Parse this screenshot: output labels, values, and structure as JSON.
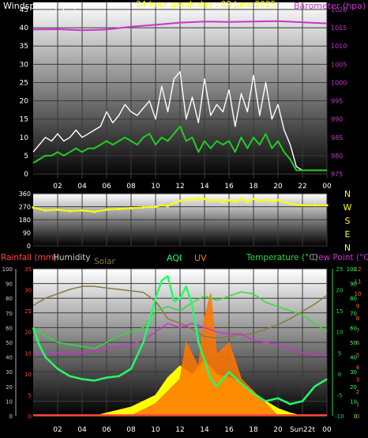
{
  "header": {
    "wind_title": "Windspeed (kph)",
    "graph_title": "24 hour graph day : 02 June 2025",
    "baro_title": "Barometer (hpa)"
  },
  "legend": {
    "rainfall": "Rainfall (mm)",
    "humidity": "Humidity",
    "solar": "Solar",
    "aqi": "AQI",
    "uv": "UV",
    "temperature": "Temperature (°C)",
    "dewpoint": "Dew Point (°C)"
  },
  "colors": {
    "background": "#000000",
    "grid": "#3a3a3a",
    "wind_gust": "#ffffff",
    "wind_avg": "#22cc22",
    "barometer": "#cc33cc",
    "direction": "#ffff00",
    "rainfall": "#ff4444",
    "humidity": "#c8c8c8",
    "solar": "#8a7a3a",
    "aqi": "#22ff66",
    "uv": "#ff7700",
    "temperature": "#33dd33",
    "dewpoint": "#cc33cc",
    "solar_fill": "#ffff00"
  },
  "chart_data": [
    {
      "type": "line",
      "name": "wind-barometer",
      "x_ticks": [
        "02",
        "04",
        "06",
        "08",
        "10",
        "12",
        "14",
        "16",
        "18",
        "20",
        "22",
        "00"
      ],
      "xlim": [
        0,
        24
      ],
      "y_left": {
        "label": "Windspeed (kph)",
        "range": [
          0,
          45
        ],
        "ticks": [
          "0",
          "5",
          "10",
          "15",
          "20",
          "25",
          "30",
          "35",
          "40",
          "45"
        ]
      },
      "y_right": {
        "label": "Barometer (hpa)",
        "range": [
          975,
          1020
        ],
        "ticks": [
          "975",
          "980",
          "985",
          "990",
          "995",
          "1000",
          "1005",
          "1010",
          "1015",
          "1020"
        ]
      },
      "series": [
        {
          "name": "gust",
          "axis": "left",
          "x": [
            0,
            0.5,
            1,
            1.5,
            2,
            2.5,
            3,
            3.5,
            4,
            4.5,
            5,
            5.5,
            6,
            6.5,
            7,
            7.5,
            8,
            8.5,
            9,
            9.5,
            10,
            10.5,
            11,
            11.5,
            12,
            12.5,
            13,
            13.5,
            14,
            14.5,
            15,
            15.5,
            16,
            16.5,
            17,
            17.5,
            18,
            18.5,
            19,
            19.5,
            20,
            20.5,
            21,
            21.5,
            22,
            23,
            24
          ],
          "y": [
            6,
            8,
            10,
            9,
            11,
            9,
            10,
            12,
            10,
            11,
            12,
            13,
            17,
            14,
            16,
            19,
            17,
            16,
            18,
            20,
            15,
            24,
            17,
            26,
            28,
            15,
            21,
            14,
            26,
            16,
            19,
            17,
            23,
            13,
            22,
            17,
            27,
            16,
            25,
            15,
            19,
            12,
            8,
            2,
            1,
            1,
            1
          ]
        },
        {
          "name": "average",
          "axis": "left",
          "x": [
            0,
            0.5,
            1,
            1.5,
            2,
            2.5,
            3,
            3.5,
            4,
            4.5,
            5,
            5.5,
            6,
            6.5,
            7,
            7.5,
            8,
            8.5,
            9,
            9.5,
            10,
            10.5,
            11,
            11.5,
            12,
            12.5,
            13,
            13.5,
            14,
            14.5,
            15,
            15.5,
            16,
            16.5,
            17,
            17.5,
            18,
            18.5,
            19,
            19.5,
            20,
            20.5,
            21,
            21.5,
            22,
            23,
            24
          ],
          "y": [
            3,
            4,
            5,
            5,
            6,
            5,
            6,
            7,
            6,
            7,
            7,
            8,
            9,
            8,
            9,
            10,
            9,
            8,
            10,
            11,
            8,
            10,
            9,
            11,
            13,
            9,
            10,
            6,
            9,
            7,
            9,
            8,
            9,
            6,
            10,
            7,
            10,
            8,
            11,
            7,
            9,
            6,
            4,
            1,
            1,
            1,
            1
          ]
        },
        {
          "name": "barometer",
          "axis": "right",
          "x": [
            0,
            2,
            4,
            6,
            8,
            10,
            12,
            14,
            16,
            18,
            20,
            22,
            24
          ],
          "y": [
            1014.5,
            1014.6,
            1014.3,
            1014.5,
            1015.3,
            1015.8,
            1016.4,
            1016.7,
            1016.6,
            1016.7,
            1016.8,
            1016.5,
            1016.2
          ]
        }
      ]
    },
    {
      "type": "scatter",
      "name": "wind-direction",
      "x_ticks": [
        "02",
        "04",
        "06",
        "08",
        "10",
        "12",
        "14",
        "16",
        "18",
        "20",
        "22",
        "00"
      ],
      "xlim": [
        0,
        24
      ],
      "y_left": {
        "range": [
          0,
          360
        ],
        "ticks": [
          "0",
          "90",
          "180",
          "270",
          "360"
        ]
      },
      "y_right_labels": [
        "N",
        "W",
        "S",
        "E",
        "N"
      ],
      "series": [
        {
          "name": "direction",
          "x": [
            0,
            1,
            2,
            3,
            4,
            5,
            6,
            7,
            8,
            9,
            10,
            10.5,
            11,
            11.5,
            12,
            12.5,
            13,
            13.5,
            14,
            14.5,
            15,
            15.5,
            16,
            16.5,
            17,
            17.5,
            18,
            18.5,
            19,
            19.5,
            20,
            20.5,
            21,
            22,
            23,
            24
          ],
          "y": [
            265,
            245,
            250,
            240,
            245,
            235,
            250,
            255,
            260,
            265,
            270,
            280,
            275,
            295,
            310,
            320,
            315,
            330,
            325,
            310,
            320,
            300,
            315,
            305,
            330,
            300,
            325,
            310,
            320,
            305,
            315,
            300,
            290,
            280,
            280,
            280
          ]
        }
      ]
    },
    {
      "type": "line",
      "name": "temperature-humidity-solar",
      "x_ticks": [
        "02",
        "04",
        "06",
        "08",
        "10",
        "12",
        "14",
        "16",
        "18",
        "20",
        "Sun22t",
        "00"
      ],
      "xlim": [
        0,
        24
      ],
      "y_rain": {
        "range": [
          0,
          35
        ],
        "ticks": [
          "0",
          "5",
          "10",
          "15",
          "20",
          "25",
          "30",
          "35"
        ]
      },
      "y_humidity": {
        "range": [
          0,
          100
        ],
        "ticks": [
          "0",
          "10",
          "20",
          "30",
          "40",
          "50",
          "60",
          "70",
          "80",
          "90",
          "100"
        ]
      },
      "y_temp": {
        "range": [
          -10,
          25
        ],
        "ticks": [
          "-10",
          "-5",
          "0",
          "5",
          "10",
          "15",
          "20",
          "25"
        ]
      },
      "y_uv": {
        "range": [
          0,
          12
        ],
        "ticks": [
          "0",
          "1",
          "2",
          "3",
          "4",
          "5",
          "6",
          "7",
          "8",
          "9",
          "10",
          "11",
          "12"
        ]
      },
      "y_aqi": {
        "range": [
          0,
          100
        ],
        "ticks": [
          "0",
          "10",
          "20",
          "30",
          "40",
          "50",
          "60",
          "70",
          "80",
          "90",
          "100"
        ]
      },
      "series": [
        {
          "name": "temperature",
          "axis": "temp",
          "x": [
            0,
            1,
            2,
            3,
            4,
            5,
            6,
            7,
            8,
            9,
            10,
            11,
            12,
            13,
            14,
            15,
            16,
            17,
            18,
            19,
            20,
            21,
            22,
            23,
            24
          ],
          "y": [
            11,
            9,
            7.5,
            7,
            6.5,
            6,
            7.5,
            9,
            10,
            11,
            15,
            16,
            15,
            17,
            18.5,
            17.5,
            18.5,
            19.5,
            19,
            17,
            16,
            15,
            14,
            12,
            10
          ]
        },
        {
          "name": "dewpoint",
          "axis": "temp",
          "x": [
            0,
            1,
            2,
            3,
            4,
            5,
            6,
            7,
            8,
            9,
            10,
            11,
            12,
            13,
            14,
            15,
            16,
            17,
            18,
            19,
            20,
            21,
            22,
            23,
            24
          ],
          "y": [
            5,
            5,
            5,
            5,
            5,
            5.5,
            6,
            6.5,
            7,
            8,
            10,
            12,
            11,
            12,
            11,
            10,
            9.5,
            9.5,
            8,
            7.5,
            7,
            6,
            5,
            4.5,
            4.5
          ]
        },
        {
          "name": "humidity",
          "axis": "humidity",
          "x": [
            0,
            1,
            2,
            3,
            4,
            5,
            6,
            7,
            8,
            9,
            10,
            11,
            12,
            13,
            14,
            15,
            16,
            17,
            18,
            19,
            20,
            21,
            22,
            23,
            24
          ],
          "y": [
            75,
            80,
            83,
            86,
            88,
            88,
            87,
            86,
            85,
            84,
            78,
            66,
            63,
            59,
            54,
            53,
            54,
            55,
            56,
            59,
            62,
            66,
            71,
            76,
            82
          ]
        },
        {
          "name": "aqi",
          "axis": "aqi",
          "x": [
            0,
            0.5,
            1,
            2,
            3,
            4,
            5,
            6,
            7,
            8,
            9,
            10,
            10.5,
            11,
            11.5,
            12,
            12.5,
            13,
            13.5,
            14,
            14.5,
            15,
            16,
            17,
            18,
            19,
            20,
            21,
            22,
            23,
            24
          ],
          "y": [
            60,
            48,
            40,
            32,
            27,
            25,
            24,
            26,
            27,
            32,
            50,
            80,
            92,
            95,
            78,
            80,
            88,
            75,
            50,
            38,
            25,
            20,
            30,
            22,
            15,
            10,
            12,
            8,
            10,
            20,
            25
          ]
        },
        {
          "name": "solar",
          "axis": "aqi",
          "x": [
            0,
            5,
            6,
            7,
            8,
            9,
            10,
            11,
            12,
            13,
            14,
            15,
            16,
            17,
            18,
            19,
            20,
            21,
            22,
            23,
            24
          ],
          "y": [
            0,
            0,
            2,
            4,
            6,
            10,
            14,
            26,
            34,
            28,
            38,
            28,
            26,
            22,
            16,
            10,
            5,
            2,
            0,
            0,
            0
          ]
        },
        {
          "name": "uv",
          "axis": "uv",
          "x": [
            0,
            8,
            9,
            10,
            11,
            12,
            12.5,
            13,
            13.5,
            14,
            14.5,
            15,
            16,
            17,
            18,
            19,
            20,
            24
          ],
          "y": [
            0,
            0,
            0.5,
            1,
            2,
            3,
            6,
            5,
            4,
            8,
            10,
            5,
            6,
            3,
            2,
            1,
            0,
            0
          ]
        }
      ]
    }
  ]
}
